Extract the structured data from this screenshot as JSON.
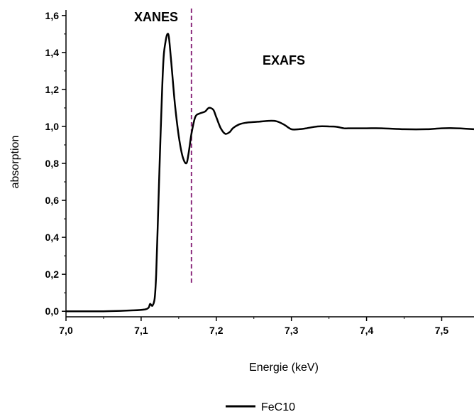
{
  "chart_data": {
    "type": "line",
    "xlabel": "Energie (keV)",
    "ylabel": "absorption",
    "xlim": [
      7.0,
      7.543
    ],
    "ylim": [
      -0.03,
      1.63
    ],
    "x_ticks": [
      "7,0",
      "7,1",
      "7,2",
      "7,3",
      "7,4",
      "7,5"
    ],
    "x_tick_values": [
      7.0,
      7.1,
      7.2,
      7.3,
      7.4,
      7.5
    ],
    "y_ticks": [
      "0,0",
      "0,2",
      "0,4",
      "0,6",
      "0,8",
      "1,0",
      "1,2",
      "1,4",
      "1,6"
    ],
    "y_tick_values": [
      0.0,
      0.2,
      0.4,
      0.6,
      0.8,
      1.0,
      1.2,
      1.4,
      1.6
    ],
    "grid": false,
    "legend_placement": "bottom-center",
    "series": [
      {
        "name": "FeC10",
        "color": "#000000",
        "x": [
          7.0,
          7.05,
          7.09,
          7.105,
          7.11,
          7.112,
          7.115,
          7.118,
          7.12,
          7.122,
          7.125,
          7.128,
          7.13,
          7.133,
          7.135,
          7.137,
          7.14,
          7.145,
          7.15,
          7.155,
          7.16,
          7.163,
          7.167,
          7.172,
          7.178,
          7.185,
          7.19,
          7.196,
          7.2,
          7.206,
          7.212,
          7.218,
          7.222,
          7.23,
          7.24,
          7.255,
          7.27,
          7.28,
          7.29,
          7.3,
          7.31,
          7.32,
          7.335,
          7.35,
          7.36,
          7.37,
          7.38,
          7.4,
          7.42,
          7.45,
          7.48,
          7.5,
          7.52,
          7.543
        ],
        "y": [
          0.0,
          0.0,
          0.005,
          0.01,
          0.02,
          0.04,
          0.03,
          0.07,
          0.2,
          0.45,
          0.85,
          1.2,
          1.38,
          1.47,
          1.5,
          1.48,
          1.35,
          1.12,
          0.95,
          0.84,
          0.8,
          0.85,
          0.96,
          1.05,
          1.07,
          1.08,
          1.1,
          1.09,
          1.05,
          0.99,
          0.96,
          0.97,
          0.99,
          1.01,
          1.02,
          1.025,
          1.03,
          1.028,
          1.01,
          0.985,
          0.985,
          0.99,
          1.0,
          1.0,
          0.998,
          0.99,
          0.99,
          0.99,
          0.99,
          0.985,
          0.985,
          0.99,
          0.99,
          0.985
        ]
      }
    ],
    "annotations": [
      {
        "text": "XANES",
        "region": "edge"
      },
      {
        "text": "EXAFS",
        "region": "post-edge"
      }
    ],
    "divider": {
      "x": 7.167,
      "color": "#8b2a7c",
      "style": "dashed"
    }
  }
}
